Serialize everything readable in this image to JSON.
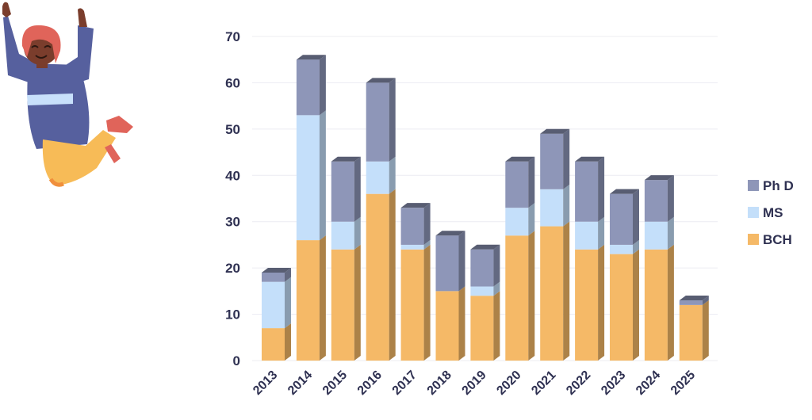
{
  "chart_data": {
    "type": "bar",
    "stacked": true,
    "style": "3d",
    "categories": [
      "2013",
      "2014",
      "2015",
      "2016",
      "2017",
      "2018",
      "2019",
      "2020",
      "2021",
      "2022",
      "2023",
      "2024",
      "2025"
    ],
    "series": [
      {
        "name": "BCH",
        "color": "#f5b967",
        "values": [
          7,
          26,
          24,
          36,
          24,
          15,
          14,
          27,
          29,
          24,
          23,
          24,
          12
        ]
      },
      {
        "name": "MS",
        "color": "#c4dffa",
        "values": [
          10,
          27,
          6,
          7,
          1,
          0,
          2,
          6,
          8,
          6,
          2,
          6,
          0
        ]
      },
      {
        "name": "Ph D",
        "color": "#8e96b8",
        "values": [
          2,
          12,
          13,
          17,
          8,
          12,
          8,
          10,
          12,
          13,
          11,
          9,
          1
        ]
      }
    ],
    "yticks": [
      0,
      10,
      20,
      30,
      40,
      50,
      60,
      70
    ],
    "ylim": [
      0,
      70
    ],
    "title": "",
    "xlabel": "",
    "ylabel": "",
    "legend_position": "right",
    "legend_order": [
      "Ph D",
      "MS",
      "BCH"
    ],
    "grid": true
  },
  "illustration": {
    "name": "jumping-person",
    "colors": {
      "sweater": "#56609e",
      "pants": "#f7bb57",
      "hair": "#e0645a",
      "skin": "#7a3d2c"
    }
  }
}
